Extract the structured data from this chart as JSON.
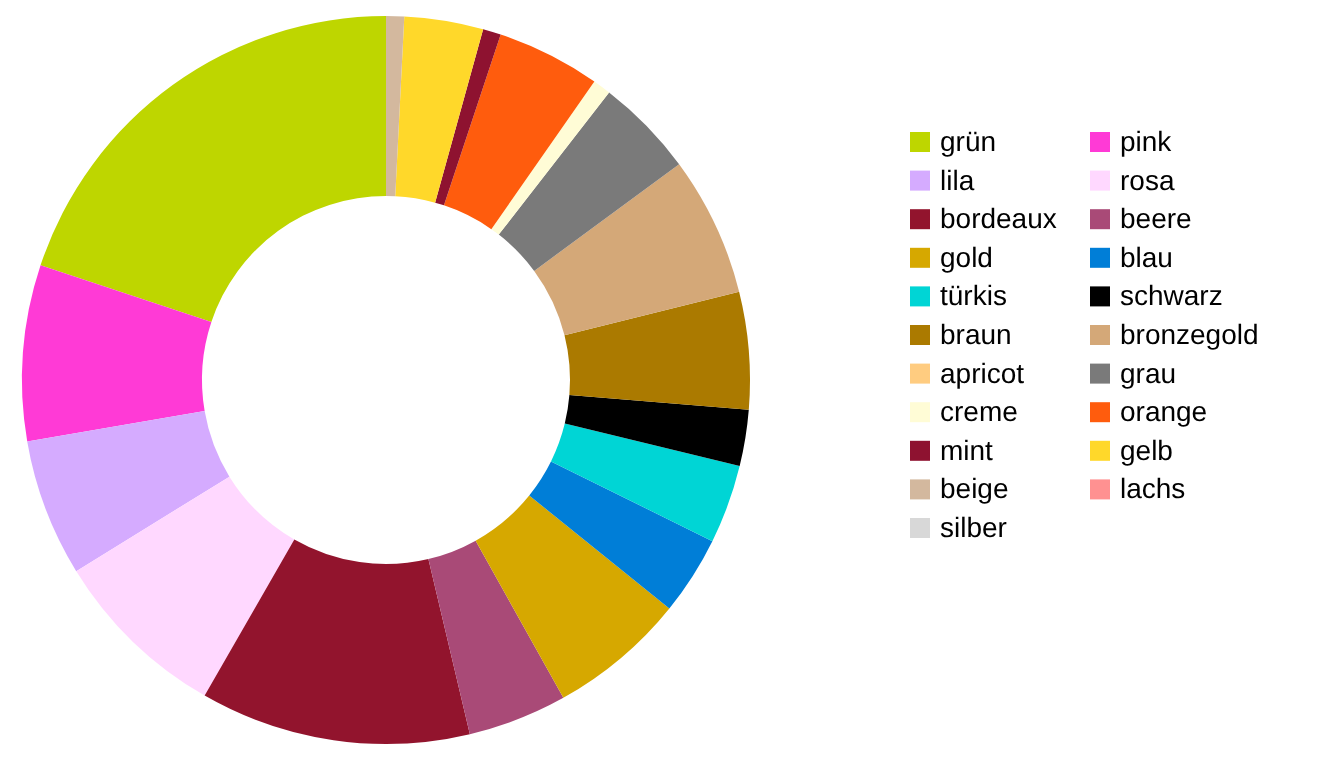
{
  "chart_data": {
    "type": "donut",
    "categories": [
      "grün",
      "pink",
      "lila",
      "rosa",
      "bordeaux",
      "beere",
      "gold",
      "blau",
      "türkis",
      "schwarz",
      "braun",
      "bronzegold",
      "apricot",
      "grau",
      "creme",
      "orange",
      "mint",
      "gelb",
      "beige",
      "lachs",
      "silber"
    ],
    "values": [
      19.9,
      7.8,
      6.1,
      7.9,
      12.0,
      4.4,
      6.1,
      3.5,
      3.5,
      2.5,
      5.2,
      6.2,
      0,
      4.4,
      0.8,
      4.6,
      0.8,
      3.5,
      0.8,
      0,
      0
    ],
    "colors": [
      "#bed600",
      "#ff3ad6",
      "#d5abff",
      "#ffd8ff",
      "#92142d",
      "#a94a77",
      "#d6a800",
      "#007ed7",
      "#00d5d5",
      "#000000",
      "#ab7a00",
      "#d4a878",
      "#ffcc80",
      "#7a7a7a",
      "#fffcd6",
      "#ff5c0d",
      "#8e1230",
      "#ffd82a",
      "#d3b89e",
      "#ff9191",
      "#d8d8d8"
    ],
    "legend": "right"
  }
}
